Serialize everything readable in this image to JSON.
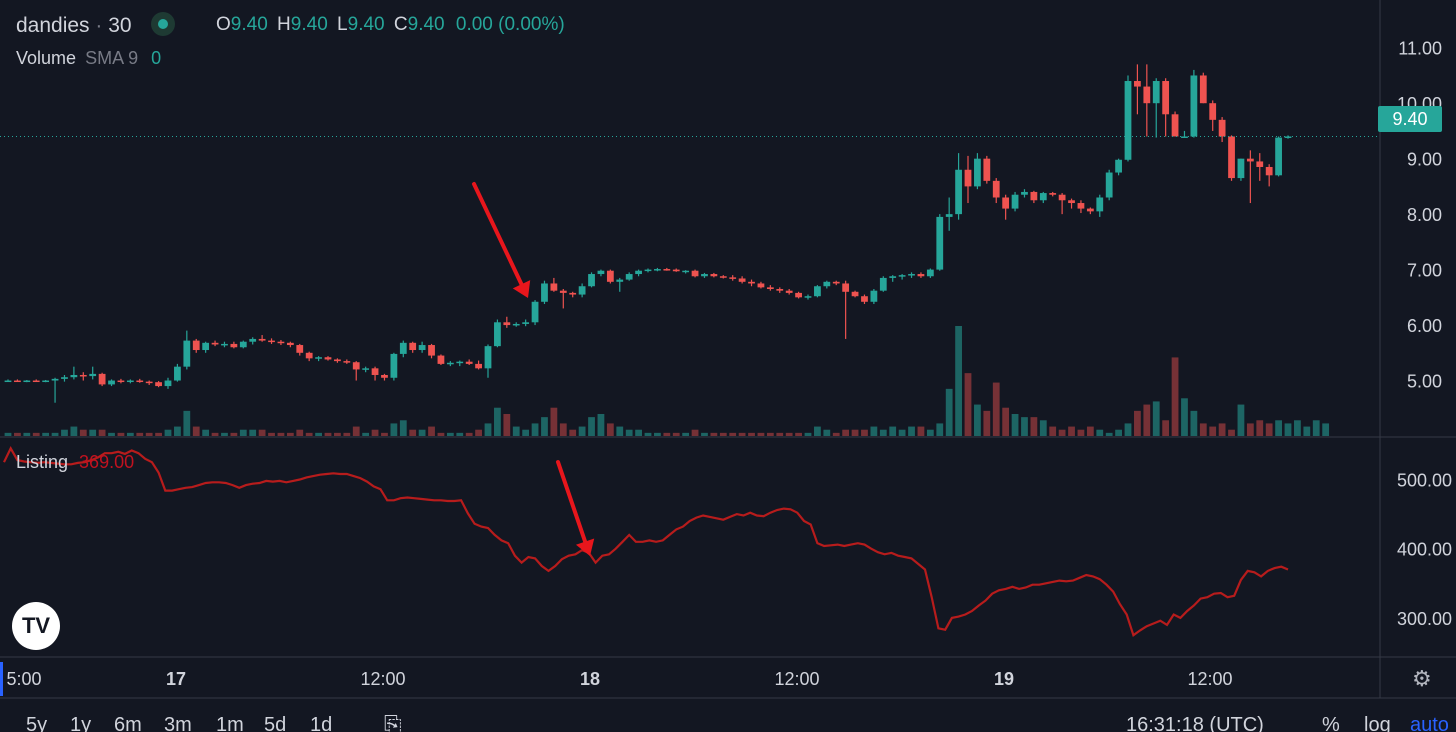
{
  "header": {
    "symbol": "dandies",
    "separator": "·",
    "interval": "30",
    "ohlc": {
      "o_label": "O",
      "o": "9.40",
      "h_label": "H",
      "h": "9.40",
      "l_label": "L",
      "l": "9.40",
      "c_label": "C",
      "c": "9.40",
      "change": "0.00 (0.00%)"
    }
  },
  "volume_legend": {
    "name": "Volume",
    "indicator": "SMA 9",
    "value": "0"
  },
  "listing_legend": {
    "name": "Listing",
    "value": "369.00"
  },
  "last_price_tag": "9.40",
  "bottom_bar": {
    "ranges": [
      "5y",
      "1y",
      "6m",
      "3m",
      "1m",
      "5d",
      "1d"
    ],
    "time": "16:31:18 (UTC)",
    "percent": "%",
    "log": "log",
    "auto": "auto"
  },
  "colors": {
    "up": "#26a69a",
    "down": "#ef5350",
    "listing_line": "#b71c1c",
    "background": "#131722",
    "accent": "#2962ff"
  },
  "icons": {
    "logo": "tradingview-logo-icon",
    "settings": "gear-icon",
    "goto": "calendar-goto-icon"
  },
  "chart_data": [
    {
      "type": "candlestick",
      "name": "price",
      "y_ticks": [
        "11.00",
        "10.00",
        "9.00",
        "8.00",
        "7.00",
        "6.00",
        "5.00"
      ],
      "ylim": [
        4.0,
        11.5
      ],
      "x_ticks": [
        "5:00",
        "17",
        "12:00",
        "18",
        "12:00",
        "19",
        "12:00"
      ],
      "candles": [
        [
          5.0,
          5.02,
          4.98,
          5.0
        ],
        [
          5.0,
          5.02,
          4.98,
          4.99
        ],
        [
          4.99,
          5.01,
          4.97,
          5.0
        ],
        [
          5.0,
          5.02,
          4.98,
          4.99
        ],
        [
          4.99,
          5.01,
          4.97,
          5.0
        ],
        [
          5.0,
          5.05,
          4.6,
          5.03
        ],
        [
          5.03,
          5.1,
          4.98,
          5.06
        ],
        [
          5.06,
          5.25,
          5.02,
          5.1
        ],
        [
          5.1,
          5.15,
          5.0,
          5.08
        ],
        [
          5.08,
          5.25,
          5.02,
          5.12
        ],
        [
          5.12,
          5.14,
          4.9,
          4.93
        ],
        [
          4.93,
          5.02,
          4.9,
          5.0
        ],
        [
          5.0,
          5.03,
          4.95,
          4.98
        ],
        [
          4.98,
          5.02,
          4.95,
          5.0
        ],
        [
          5.0,
          5.03,
          4.96,
          4.98
        ],
        [
          4.98,
          5.0,
          4.92,
          4.97
        ],
        [
          4.97,
          4.99,
          4.88,
          4.9
        ],
        [
          4.9,
          5.05,
          4.85,
          5.0
        ],
        [
          5.0,
          5.3,
          4.98,
          5.25
        ],
        [
          5.25,
          5.9,
          5.2,
          5.72
        ],
        [
          5.72,
          5.75,
          5.5,
          5.55
        ],
        [
          5.55,
          5.7,
          5.5,
          5.68
        ],
        [
          5.68,
          5.72,
          5.62,
          5.65
        ],
        [
          5.65,
          5.7,
          5.6,
          5.66
        ],
        [
          5.66,
          5.7,
          5.58,
          5.6
        ],
        [
          5.6,
          5.72,
          5.58,
          5.7
        ],
        [
          5.7,
          5.78,
          5.65,
          5.75
        ],
        [
          5.75,
          5.82,
          5.7,
          5.72
        ],
        [
          5.72,
          5.76,
          5.66,
          5.7
        ],
        [
          5.7,
          5.73,
          5.64,
          5.68
        ],
        [
          5.68,
          5.7,
          5.6,
          5.64
        ],
        [
          5.64,
          5.66,
          5.45,
          5.5
        ],
        [
          5.5,
          5.52,
          5.35,
          5.4
        ],
        [
          5.4,
          5.44,
          5.35,
          5.42
        ],
        [
          5.42,
          5.44,
          5.36,
          5.38
        ],
        [
          5.38,
          5.4,
          5.32,
          5.35
        ],
        [
          5.35,
          5.38,
          5.3,
          5.33
        ],
        [
          5.33,
          5.35,
          5.0,
          5.2
        ],
        [
          5.2,
          5.25,
          5.15,
          5.22
        ],
        [
          5.22,
          5.25,
          5.0,
          5.1
        ],
        [
          5.1,
          5.12,
          5.0,
          5.05
        ],
        [
          5.05,
          5.5,
          5.0,
          5.48
        ],
        [
          5.48,
          5.72,
          5.42,
          5.68
        ],
        [
          5.68,
          5.7,
          5.5,
          5.55
        ],
        [
          5.55,
          5.7,
          5.5,
          5.64
        ],
        [
          5.64,
          5.66,
          5.4,
          5.45
        ],
        [
          5.45,
          5.47,
          5.28,
          5.3
        ],
        [
          5.3,
          5.35,
          5.26,
          5.32
        ],
        [
          5.32,
          5.36,
          5.26,
          5.34
        ],
        [
          5.34,
          5.38,
          5.28,
          5.3
        ],
        [
          5.3,
          5.36,
          5.2,
          5.22
        ],
        [
          5.22,
          5.65,
          5.05,
          5.62
        ],
        [
          5.62,
          6.1,
          5.6,
          6.05
        ],
        [
          6.05,
          6.15,
          5.95,
          6.0
        ],
        [
          6.0,
          6.05,
          5.97,
          6.02
        ],
        [
          6.02,
          6.1,
          5.98,
          6.05
        ],
        [
          6.05,
          6.45,
          6.0,
          6.42
        ],
        [
          6.42,
          6.8,
          6.38,
          6.75
        ],
        [
          6.75,
          6.85,
          6.6,
          6.62
        ],
        [
          6.62,
          6.65,
          6.3,
          6.58
        ],
        [
          6.58,
          6.6,
          6.5,
          6.55
        ],
        [
          6.55,
          6.75,
          6.5,
          6.7
        ],
        [
          6.7,
          6.95,
          6.68,
          6.92
        ],
        [
          6.92,
          7.0,
          6.88,
          6.98
        ],
        [
          6.98,
          7.0,
          6.75,
          6.78
        ],
        [
          6.78,
          6.85,
          6.6,
          6.82
        ],
        [
          6.82,
          6.95,
          6.8,
          6.92
        ],
        [
          6.92,
          7.0,
          6.88,
          6.98
        ],
        [
          6.98,
          7.02,
          6.95,
          7.0
        ],
        [
          7.0,
          7.03,
          6.97,
          7.01
        ],
        [
          7.01,
          7.03,
          6.98,
          7.0
        ],
        [
          7.0,
          7.02,
          6.96,
          6.97
        ],
        [
          6.97,
          6.99,
          6.93,
          6.98
        ],
        [
          6.98,
          7.0,
          6.86,
          6.88
        ],
        [
          6.88,
          6.94,
          6.85,
          6.92
        ],
        [
          6.92,
          6.94,
          6.86,
          6.88
        ],
        [
          6.88,
          6.9,
          6.84,
          6.86
        ],
        [
          6.86,
          6.9,
          6.8,
          6.84
        ],
        [
          6.84,
          6.88,
          6.75,
          6.78
        ],
        [
          6.78,
          6.82,
          6.7,
          6.75
        ],
        [
          6.75,
          6.78,
          6.66,
          6.68
        ],
        [
          6.68,
          6.72,
          6.62,
          6.65
        ],
        [
          6.65,
          6.68,
          6.58,
          6.62
        ],
        [
          6.62,
          6.65,
          6.55,
          6.58
        ],
        [
          6.58,
          6.6,
          6.48,
          6.5
        ],
        [
          6.5,
          6.55,
          6.46,
          6.52
        ],
        [
          6.52,
          6.72,
          6.5,
          6.7
        ],
        [
          6.7,
          6.8,
          6.66,
          6.78
        ],
        [
          6.78,
          6.8,
          6.72,
          6.75
        ],
        [
          6.75,
          6.8,
          5.75,
          6.6
        ],
        [
          6.6,
          6.62,
          6.5,
          6.52
        ],
        [
          6.52,
          6.55,
          6.38,
          6.42
        ],
        [
          6.42,
          6.65,
          6.38,
          6.62
        ],
        [
          6.62,
          6.88,
          6.6,
          6.85
        ],
        [
          6.85,
          6.9,
          6.78,
          6.88
        ],
        [
          6.88,
          6.92,
          6.82,
          6.9
        ],
        [
          6.9,
          6.95,
          6.85,
          6.92
        ],
        [
          6.92,
          6.95,
          6.85,
          6.88
        ],
        [
          6.88,
          7.02,
          6.85,
          7.0
        ],
        [
          7.0,
          8.0,
          6.98,
          7.95
        ],
        [
          7.95,
          8.3,
          7.7,
          8.0
        ],
        [
          8.0,
          9.1,
          7.9,
          8.8
        ],
        [
          8.8,
          9.05,
          8.2,
          8.5
        ],
        [
          8.5,
          9.1,
          8.45,
          9.0
        ],
        [
          9.0,
          9.05,
          8.55,
          8.6
        ],
        [
          8.6,
          8.65,
          8.2,
          8.3
        ],
        [
          8.3,
          8.35,
          7.9,
          8.1
        ],
        [
          8.1,
          8.4,
          8.05,
          8.35
        ],
        [
          8.35,
          8.45,
          8.3,
          8.4
        ],
        [
          8.4,
          8.42,
          8.2,
          8.25
        ],
        [
          8.25,
          8.4,
          8.2,
          8.38
        ],
        [
          8.38,
          8.4,
          8.32,
          8.35
        ],
        [
          8.35,
          8.38,
          8.0,
          8.25
        ],
        [
          8.25,
          8.28,
          8.1,
          8.2
        ],
        [
          8.2,
          8.25,
          8.02,
          8.1
        ],
        [
          8.1,
          8.12,
          8.0,
          8.05
        ],
        [
          8.05,
          8.35,
          7.95,
          8.3
        ],
        [
          8.3,
          8.8,
          8.25,
          8.75
        ],
        [
          8.75,
          9.0,
          8.7,
          8.98
        ],
        [
          8.98,
          10.5,
          8.95,
          10.4
        ],
        [
          10.4,
          10.7,
          9.8,
          10.3
        ],
        [
          10.3,
          10.7,
          9.4,
          10.0
        ],
        [
          10.0,
          10.45,
          9.38,
          10.4
        ],
        [
          10.4,
          10.45,
          9.4,
          9.8
        ],
        [
          9.8,
          9.85,
          9.4,
          9.4
        ],
        [
          9.4,
          9.5,
          9.38,
          9.4
        ],
        [
          9.4,
          10.6,
          9.38,
          10.5
        ],
        [
          10.5,
          10.55,
          10.0,
          10.0
        ],
        [
          10.0,
          10.05,
          9.5,
          9.7
        ],
        [
          9.7,
          9.75,
          9.3,
          9.4
        ],
        [
          9.4,
          9.42,
          8.6,
          8.65
        ],
        [
          8.65,
          9.0,
          8.6,
          9.0
        ],
        [
          9.0,
          9.15,
          8.2,
          8.95
        ],
        [
          8.95,
          9.1,
          8.6,
          8.85
        ],
        [
          8.85,
          8.9,
          8.5,
          8.7
        ],
        [
          8.7,
          9.4,
          8.68,
          9.38
        ],
        [
          9.38,
          9.42,
          9.36,
          9.4
        ]
      ],
      "volume": [
        1,
        1,
        1,
        1,
        1,
        1,
        2,
        3,
        2,
        2,
        2,
        1,
        1,
        1,
        1,
        1,
        1,
        2,
        3,
        8,
        3,
        2,
        1,
        1,
        1,
        2,
        2,
        2,
        1,
        1,
        1,
        2,
        1,
        1,
        1,
        1,
        1,
        3,
        1,
        2,
        1,
        4,
        5,
        2,
        2,
        3,
        1,
        1,
        1,
        1,
        2,
        4,
        9,
        7,
        3,
        2,
        4,
        6,
        9,
        4,
        2,
        3,
        6,
        7,
        4,
        3,
        2,
        2,
        1,
        1,
        1,
        1,
        1,
        2,
        1,
        1,
        1,
        1,
        1,
        1,
        1,
        1,
        1,
        1,
        1,
        1,
        3,
        2,
        1,
        2,
        2,
        2,
        3,
        2,
        3,
        2,
        3,
        3,
        2,
        4,
        15,
        35,
        20,
        10,
        8,
        17,
        9,
        7,
        6,
        6,
        5,
        3,
        2,
        3,
        2,
        3,
        2,
        1,
        2,
        4,
        8,
        10,
        11,
        5,
        25,
        12,
        8,
        4,
        3,
        4,
        2,
        10,
        4,
        5,
        4,
        5,
        4,
        5,
        3,
        5,
        4
      ],
      "volume_series_name": "Volume"
    },
    {
      "type": "line",
      "name": "Listing",
      "y_ticks": [
        "500.00",
        "400.00",
        "300.00"
      ],
      "ylim": [
        245,
        560
      ],
      "x_ticks": [
        "5:00",
        "17",
        "12:00",
        "18",
        "12:00",
        "19",
        "12:00"
      ],
      "values": [
        525,
        545,
        528,
        526,
        525,
        524,
        525,
        524,
        523,
        522,
        522,
        524,
        525,
        528,
        532,
        538,
        538,
        540,
        537,
        542,
        538,
        530,
        525,
        510,
        484,
        484,
        486,
        488,
        489,
        492,
        495,
        496,
        496,
        495,
        492,
        488,
        492,
        494,
        495,
        498,
        497,
        498,
        496,
        498,
        500,
        503,
        505,
        507,
        508,
        509,
        508,
        508,
        505,
        502,
        497,
        490,
        486,
        470,
        470,
        473,
        474,
        473,
        472,
        471,
        470,
        470,
        469,
        469,
        470,
        451,
        436,
        432,
        430,
        420,
        412,
        408,
        390,
        380,
        388,
        386,
        375,
        368,
        375,
        385,
        390,
        392,
        398,
        394,
        380,
        390,
        392,
        400,
        410,
        420,
        410,
        410,
        412,
        410,
        412,
        420,
        428,
        432,
        440,
        445,
        448,
        446,
        444,
        442,
        446,
        450,
        448,
        452,
        448,
        447,
        452,
        456,
        458,
        457,
        452,
        440,
        435,
        408,
        404,
        405,
        406,
        404,
        406,
        408,
        406,
        400,
        395,
        392,
        394,
        390,
        388,
        386,
        378,
        370,
        330,
        285,
        283,
        300,
        302,
        305,
        310,
        318,
        325,
        335,
        340,
        342,
        345,
        342,
        344,
        348,
        348,
        350,
        352,
        354,
        353,
        354,
        358,
        362,
        360,
        356,
        348,
        338,
        320,
        305,
        275,
        282,
        288,
        292,
        296,
        290,
        305,
        300,
        310,
        318,
        328,
        330,
        335,
        336,
        330,
        332,
        355,
        368,
        366,
        360,
        368,
        372,
        374,
        370
      ]
    }
  ]
}
